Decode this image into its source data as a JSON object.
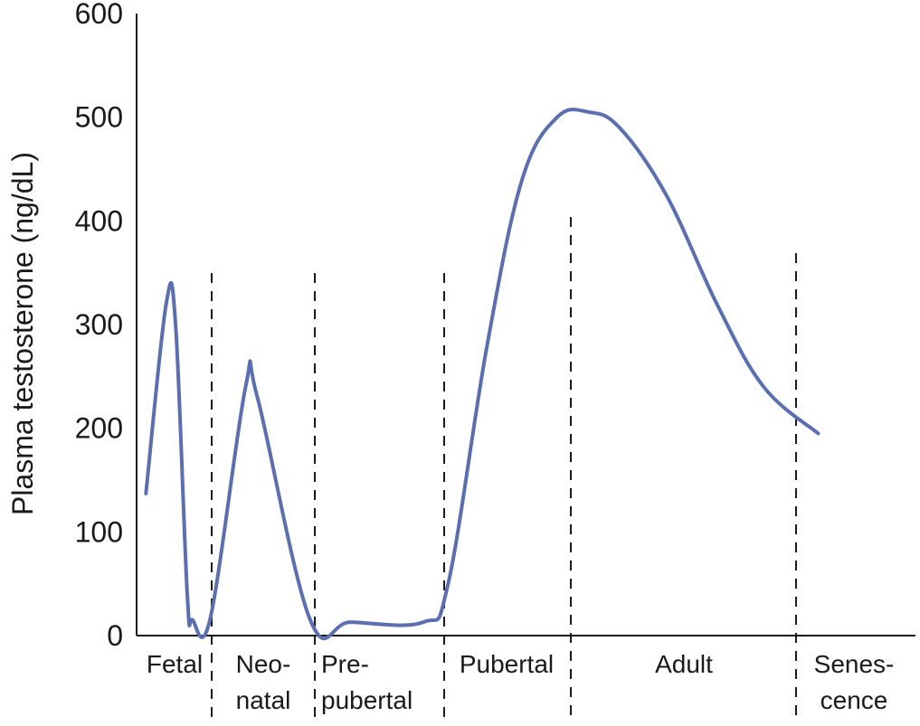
{
  "chart_data": {
    "type": "line",
    "title": "",
    "xlabel": "",
    "ylabel": "Plasma testosterone (ng/dL)",
    "ylim": [
      0,
      600
    ],
    "y_ticks": [
      "0",
      "100",
      "200",
      "300",
      "400",
      "500",
      "600"
    ],
    "grid": false,
    "legend": "none",
    "line_color": "#5b6fb0",
    "stages": [
      {
        "lines": [
          "Fetal"
        ]
      },
      {
        "lines": [
          "Neo-",
          "natal"
        ]
      },
      {
        "lines": [
          "Pre-",
          "pubertal"
        ]
      },
      {
        "lines": [
          "Pubertal"
        ]
      },
      {
        "lines": [
          "Adult"
        ]
      },
      {
        "lines": [
          "Senes-",
          "cence"
        ]
      }
    ],
    "x_positions": "relative life-stage position (0–100 across axis)",
    "series": [
      {
        "points": [
          [
            1.2,
            137
          ],
          [
            3.8,
            320
          ],
          [
            5.0,
            300
          ],
          [
            6.5,
            40
          ],
          [
            7.2,
            15
          ],
          [
            9.5,
            18
          ],
          [
            14.0,
            240
          ],
          [
            15.5,
            230
          ],
          [
            22.3,
            15
          ],
          [
            27.5,
            13
          ],
          [
            36.8,
            13
          ],
          [
            40.0,
            50
          ],
          [
            45.0,
            280
          ],
          [
            49.5,
            440
          ],
          [
            54.0,
            500
          ],
          [
            58.0,
            505
          ],
          [
            62.0,
            490
          ],
          [
            68.0,
            425
          ],
          [
            74.5,
            320
          ],
          [
            80.5,
            240
          ],
          [
            87.5,
            195
          ]
        ]
      }
    ]
  }
}
